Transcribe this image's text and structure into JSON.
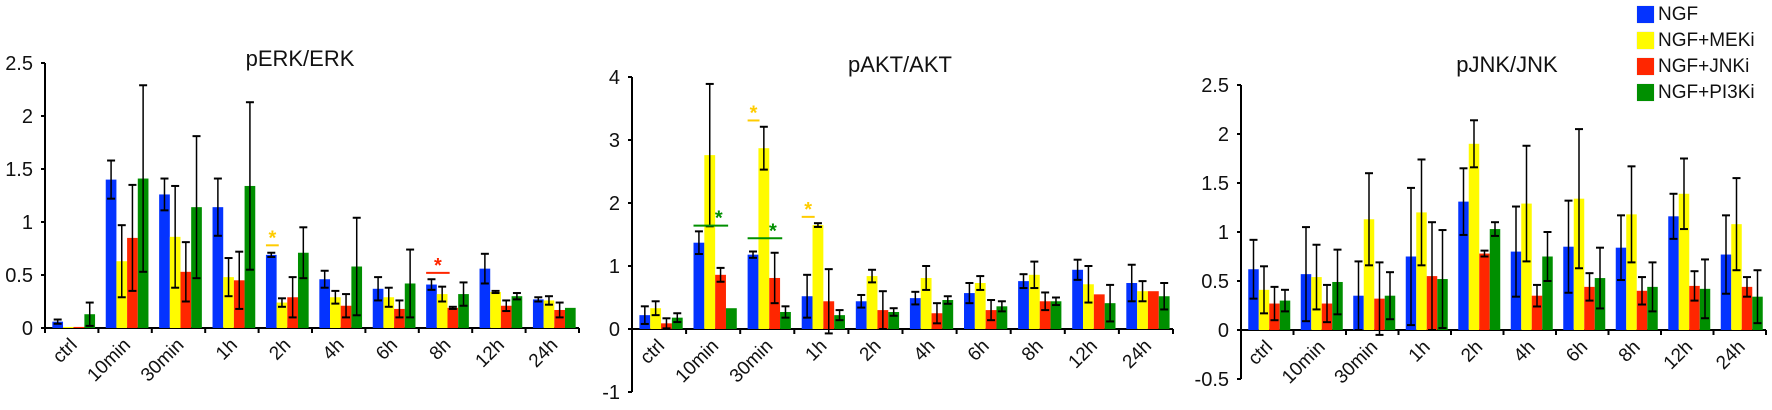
{
  "legend": [
    {
      "name": "NGF",
      "color": "#0433ff"
    },
    {
      "name": "NGF+MEKi",
      "color": "#fffb00"
    },
    {
      "name": "NGF+JNKi",
      "color": "#ff2600"
    },
    {
      "name": "NGF+PI3Ki",
      "color": "#008f00"
    }
  ],
  "chart_data": [
    {
      "type": "bar",
      "title": "pERK/ERK",
      "xlabel": "",
      "ylabel": "",
      "ylim": [
        0,
        2.5
      ],
      "yticks": [
        0,
        0.5,
        1,
        1.5,
        2,
        2.5
      ],
      "ytick_labels": [
        "0",
        "0.5",
        "1",
        "1.5",
        "2",
        "2.5"
      ],
      "categories": [
        "ctrl",
        "10min",
        "30min",
        "1h",
        "2h",
        "4h",
        "6h",
        "8h",
        "12h",
        "24h"
      ],
      "series": [
        {
          "name": "NGF",
          "values": [
            0.06,
            1.4,
            1.26,
            1.14,
            0.69,
            0.46,
            0.37,
            0.41,
            0.56,
            0.27
          ],
          "errors": [
            0.02,
            0.18,
            0.15,
            0.27,
            0.02,
            0.08,
            0.11,
            0.05,
            0.14,
            0.02
          ]
        },
        {
          "name": "NGF+MEKi",
          "values": [
            0.01,
            0.63,
            0.86,
            0.48,
            0.24,
            0.29,
            0.29,
            0.32,
            0.34,
            0.26
          ],
          "errors": [
            0.0,
            0.34,
            0.48,
            0.18,
            0.04,
            0.06,
            0.09,
            0.07,
            0.01,
            0.04
          ]
        },
        {
          "name": "NGF+JNKi",
          "values": [
            0.01,
            0.85,
            0.53,
            0.45,
            0.29,
            0.21,
            0.18,
            0.19,
            0.21,
            0.17
          ],
          "errors": [
            0.0,
            0.5,
            0.28,
            0.27,
            0.19,
            0.11,
            0.08,
            0.01,
            0.05,
            0.07
          ]
        },
        {
          "name": "NGF+PI3Ki",
          "values": [
            0.13,
            1.41,
            1.14,
            1.34,
            0.71,
            0.58,
            0.42,
            0.32,
            0.3,
            0.19
          ],
          "errors": [
            0.11,
            0.88,
            0.67,
            0.79,
            0.24,
            0.46,
            0.32,
            0.11,
            0.03,
            0.0
          ]
        }
      ],
      "annotations": [
        {
          "text": "*",
          "category": "2h",
          "y": 0.78,
          "color": "#ffcc00",
          "span": [
            0,
            1
          ]
        },
        {
          "text": "*",
          "category": "8h",
          "y": 0.52,
          "color": "#ff2600",
          "span": [
            0,
            2
          ]
        }
      ],
      "grid": false,
      "legend_position": "top-right (shared)"
    },
    {
      "type": "bar",
      "title": "pAKT/AKT",
      "xlabel": "",
      "ylabel": "",
      "ylim": [
        -1,
        4
      ],
      "yticks": [
        -1,
        0,
        1,
        2,
        3,
        4
      ],
      "ytick_labels": [
        "-1",
        "0",
        "1",
        "2",
        "3",
        "4"
      ],
      "categories": [
        "ctrl",
        "10min",
        "30min",
        "1h",
        "2h",
        "4h",
        "6h",
        "8h",
        "12h",
        "24h"
      ],
      "series": [
        {
          "name": "NGF",
          "values": [
            0.22,
            1.37,
            1.18,
            0.52,
            0.44,
            0.49,
            0.57,
            0.76,
            0.94,
            0.73
          ],
          "errors": [
            0.14,
            0.18,
            0.05,
            0.34,
            0.1,
            0.1,
            0.16,
            0.11,
            0.16,
            0.29
          ]
        },
        {
          "name": "NGF+MEKi",
          "values": [
            0.33,
            2.76,
            2.87,
            1.65,
            0.84,
            0.81,
            0.73,
            0.86,
            0.71,
            0.6
          ],
          "errors": [
            0.11,
            1.13,
            0.34,
            0.03,
            0.1,
            0.19,
            0.11,
            0.21,
            0.29,
            0.16
          ]
        },
        {
          "name": "NGF+JNKi",
          "values": [
            0.09,
            0.86,
            0.81,
            0.44,
            0.3,
            0.25,
            0.3,
            0.44,
            0.55,
            0.6
          ],
          "errors": [
            0.08,
            0.11,
            0.4,
            0.51,
            0.3,
            0.16,
            0.16,
            0.14,
            0.0,
            0.0
          ]
        },
        {
          "name": "NGF+PI3Ki",
          "values": [
            0.18,
            0.33,
            0.27,
            0.22,
            0.27,
            0.46,
            0.36,
            0.44,
            0.41,
            0.52
          ],
          "errors": [
            0.07,
            0.0,
            0.09,
            0.08,
            0.06,
            0.06,
            0.08,
            0.06,
            0.29,
            0.21
          ]
        }
      ],
      "annotations": [
        {
          "text": "*",
          "category": "10min",
          "y": 1.64,
          "color": "#008f00",
          "span": [
            0,
            3
          ]
        },
        {
          "text": "*",
          "category": "30min",
          "y": 3.31,
          "color": "#ffcc00",
          "span": [
            0,
            0.9
          ]
        },
        {
          "text": "*",
          "category": "30min",
          "y": 1.44,
          "color": "#008f00",
          "span": [
            0,
            3
          ]
        },
        {
          "text": "*",
          "category": "1h",
          "y": 1.78,
          "color": "#ffcc00",
          "span": [
            0,
            1
          ]
        }
      ],
      "grid": false,
      "legend_position": "top-right (shared)"
    },
    {
      "type": "bar",
      "title": "pJNK/JNK",
      "xlabel": "",
      "ylabel": "",
      "ylim": [
        -0.5,
        2.5
      ],
      "yticks": [
        -0.5,
        0,
        0.5,
        1,
        1.5,
        2,
        2.5
      ],
      "ytick_labels": [
        "-0.5",
        "0",
        "0.5",
        "1",
        "1.5",
        "2",
        "2.5"
      ],
      "categories": [
        "ctrl",
        "10min",
        "30min",
        "1h",
        "2h",
        "4h",
        "6h",
        "8h",
        "12h",
        "24h"
      ],
      "series": [
        {
          "name": "NGF",
          "values": [
            0.62,
            0.57,
            0.35,
            0.75,
            1.31,
            0.8,
            0.85,
            0.84,
            1.16,
            0.77
          ],
          "errors": [
            0.3,
            0.48,
            0.35,
            0.7,
            0.34,
            0.46,
            0.47,
            0.33,
            0.23,
            0.4
          ]
        },
        {
          "name": "NGF+MEKi",
          "values": [
            0.41,
            0.54,
            1.13,
            1.2,
            1.9,
            1.29,
            1.34,
            1.18,
            1.39,
            1.08
          ],
          "errors": [
            0.24,
            0.33,
            0.47,
            0.54,
            0.24,
            0.59,
            0.71,
            0.49,
            0.36,
            0.47
          ]
        },
        {
          "name": "NGF+JNKi",
          "values": [
            0.27,
            0.27,
            0.32,
            0.55,
            0.78,
            0.35,
            0.44,
            0.4,
            0.45,
            0.44
          ],
          "errors": [
            0.17,
            0.19,
            0.37,
            0.55,
            0.03,
            0.11,
            0.14,
            0.14,
            0.15,
            0.1
          ]
        },
        {
          "name": "NGF+PI3Ki",
          "values": [
            0.3,
            0.49,
            0.35,
            0.52,
            1.03,
            0.75,
            0.53,
            0.44,
            0.42,
            0.34
          ],
          "errors": [
            0.11,
            0.33,
            0.24,
            0.5,
            0.07,
            0.25,
            0.31,
            0.25,
            0.3,
            0.27
          ]
        }
      ],
      "annotations": [],
      "grid": false,
      "legend_position": "top-right (shared)"
    }
  ]
}
